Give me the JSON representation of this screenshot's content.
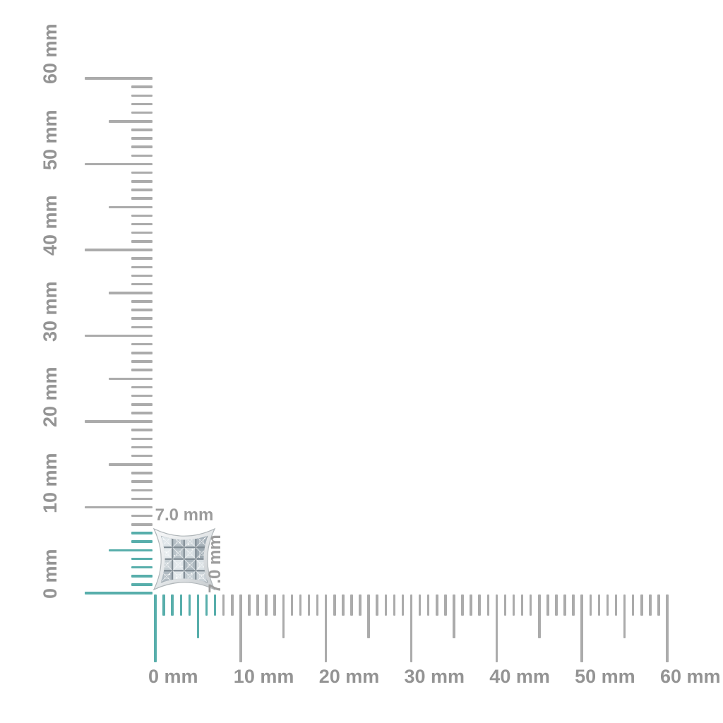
{
  "page": {
    "background": "#ffffff",
    "description": "Jewelry product size diagram with millimeter rulers"
  },
  "colors": {
    "tick_gray": "#ababab",
    "tick_teal": "#58aeab",
    "ruler_label_gray": "#949494",
    "dim_label_gray": "#9c9c9c"
  },
  "rulers": {
    "unit": "mm",
    "range_min": 0,
    "range_max": 60,
    "minor_step": 1,
    "mid_step": 5,
    "major_step": 10,
    "highlighted_span_mm": 7,
    "horizontal": {
      "labels": [
        "0 mm",
        "10 mm",
        "20 mm",
        "30 mm",
        "40 mm",
        "50 mm",
        "60 mm"
      ]
    },
    "vertical": {
      "labels": [
        "0 mm",
        "10 mm",
        "20 mm",
        "30 mm",
        "40 mm",
        "50 mm",
        "60 mm"
      ]
    }
  },
  "item": {
    "kind": "square pave diamond stud earring",
    "width_label": "7.0 mm",
    "height_label": "7.0 mm",
    "width_mm": 7.0,
    "height_mm": 7.0
  }
}
